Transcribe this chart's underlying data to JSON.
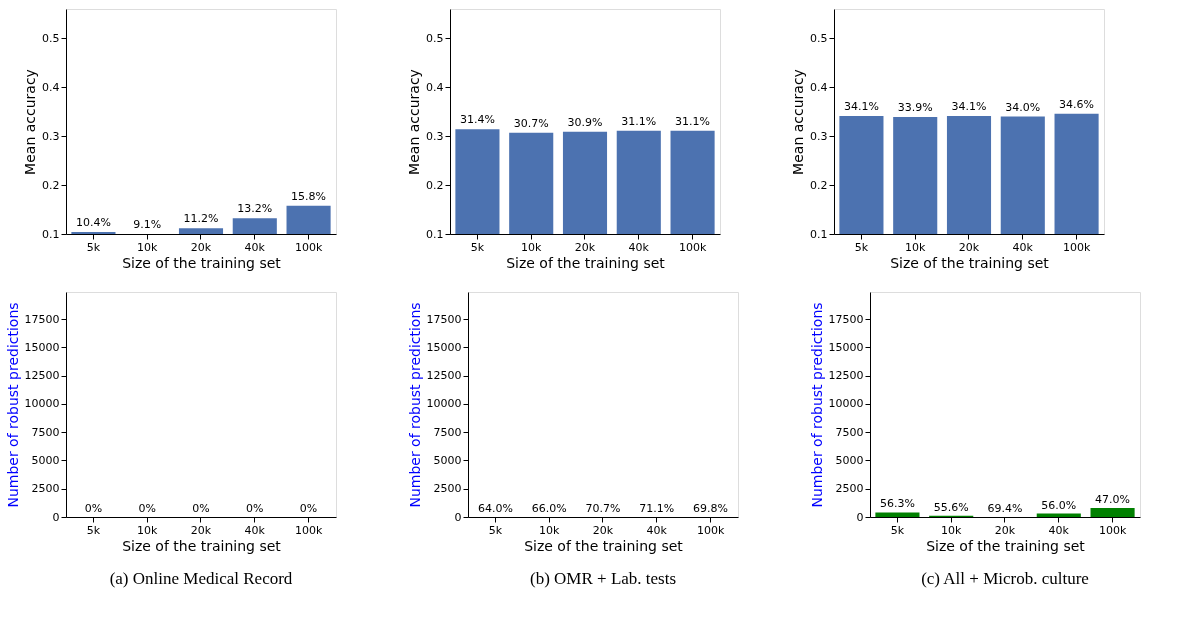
{
  "chart_data": [
    {
      "type": "bar",
      "categories": [
        "5k",
        "10k",
        "20k",
        "40k",
        "100k"
      ],
      "values": [
        0.104,
        null,
        0.112,
        0.132,
        0.158
      ],
      "value_labels": [
        "10.4%",
        "9.1%",
        "11.2%",
        "13.2%",
        "15.8%"
      ],
      "color": "#4c72b0",
      "ylim": [
        0.1,
        0.56
      ],
      "yticks": [
        0.1,
        0.2,
        0.3,
        0.4,
        0.5
      ],
      "xlabel": "Size of the training set",
      "ylabel": "Mean accuracy"
    },
    {
      "type": "bar",
      "categories": [
        "5k",
        "10k",
        "20k",
        "40k",
        "100k"
      ],
      "values": [
        0.314,
        0.307,
        0.309,
        0.311,
        0.311
      ],
      "value_labels": [
        "31.4%",
        "30.7%",
        "30.9%",
        "31.1%",
        "31.1%"
      ],
      "color": "#4c72b0",
      "ylim": [
        0.1,
        0.56
      ],
      "yticks": [
        0.1,
        0.2,
        0.3,
        0.4,
        0.5
      ],
      "xlabel": "Size of the training set",
      "ylabel": "Mean accuracy"
    },
    {
      "type": "bar",
      "categories": [
        "5k",
        "10k",
        "20k",
        "40k",
        "100k"
      ],
      "values": [
        0.341,
        0.339,
        0.341,
        0.34,
        0.346
      ],
      "value_labels": [
        "34.1%",
        "33.9%",
        "34.1%",
        "34.0%",
        "34.6%"
      ],
      "color": "#4c72b0",
      "ylim": [
        0.1,
        0.56
      ],
      "yticks": [
        0.1,
        0.2,
        0.3,
        0.4,
        0.5
      ],
      "xlabel": "Size of the training set",
      "ylabel": "Mean accuracy"
    },
    {
      "type": "bar",
      "categories": [
        "5k",
        "10k",
        "20k",
        "40k",
        "100k"
      ],
      "values": [
        0,
        0,
        0,
        0,
        0
      ],
      "color": "#008000",
      "ylim": [
        0,
        19900
      ],
      "yticks": [
        0,
        2500,
        5000,
        7500,
        10000,
        12500,
        15000,
        17500
      ],
      "xlabel": "Size of the training set",
      "ylabel": "Number of robust predictions",
      "annotations": [
        "(a) Online Medical Record",
        {
          "text": "0%",
          "x": "5k",
          "y": 0
        },
        {
          "text": "0%",
          "x": "10k",
          "y": 0
        },
        {
          "text": "0%",
          "x": "20k",
          "y": 0
        },
        {
          "text": "0%",
          "x": "40k",
          "y": 0
        },
        {
          "text": "0%",
          "x": "100k",
          "y": 0
        }
      ]
    },
    {
      "type": "bar",
      "categories": [
        "5k",
        "10k",
        "20k",
        "40k",
        "100k"
      ],
      "values": [
        0,
        0,
        0,
        0,
        0
      ],
      "color": "#008000",
      "ylim": [
        0,
        19900
      ],
      "yticks": [
        0,
        2500,
        5000,
        7500,
        10000,
        12500,
        15000,
        17500
      ],
      "xlabel": "Size of the training set",
      "ylabel": "Number of robust predictions",
      "annotations": [
        "(b) OMR + Lab. tests",
        {
          "text": "64.0%",
          "x": "5k",
          "y": 0
        },
        {
          "text": "66.0%",
          "x": "10k",
          "y": 0
        },
        {
          "text": "70.7%",
          "x": "20k",
          "y": 0
        },
        {
          "text": "71.1%",
          "x": "40k",
          "y": 0
        },
        {
          "text": "69.8%",
          "x": "100k",
          "y": 0
        }
      ]
    },
    {
      "type": "bar",
      "categories": [
        "5k",
        "10k",
        "20k",
        "40k",
        "100k"
      ],
      "values": [
        400,
        100,
        0,
        300,
        800
      ],
      "color": "#008000",
      "ylim": [
        0,
        19900
      ],
      "yticks": [
        0,
        2500,
        5000,
        7500,
        10000,
        12500,
        15000,
        17500
      ],
      "xlabel": "Size of the training set",
      "ylabel": "Number of robust predictions",
      "annotations": [
        "(c) All + Microb. culture",
        {
          "text": "56.3%",
          "x": "5k",
          "y": 400
        },
        {
          "text": "55.6%",
          "x": "10k",
          "y": 100
        },
        {
          "text": "69.4%",
          "x": "20k",
          "y": 0
        },
        {
          "text": "56.0%",
          "x": "40k",
          "y": 300
        },
        {
          "text": "47.0%",
          "x": "100k",
          "y": 800
        }
      ]
    }
  ]
}
